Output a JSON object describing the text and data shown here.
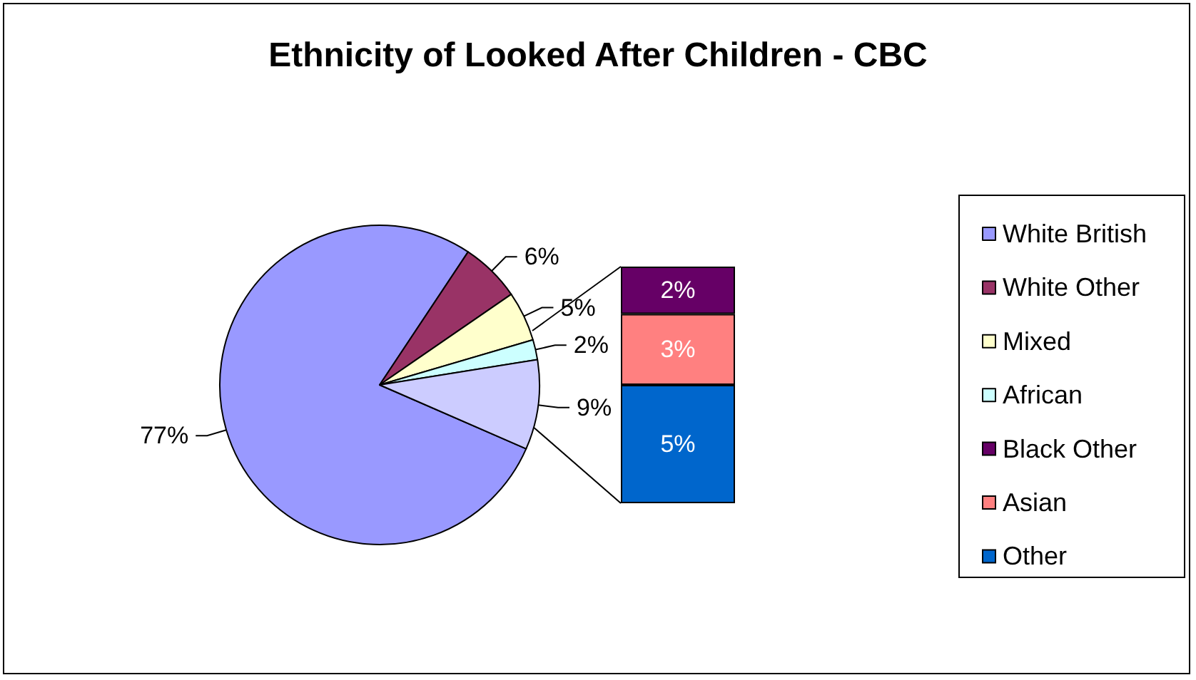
{
  "chart_data": [
    {
      "type": "pie",
      "title": "Ethnicity of Looked After Children - CBC",
      "categories": [
        "White British",
        "White Other",
        "Mixed",
        "African",
        null
      ],
      "values": [
        77,
        6,
        5,
        2,
        9
      ],
      "colors": [
        "#9999ff",
        "#993366",
        "#ffffcc",
        "#ccffff",
        "#ccccff"
      ],
      "value_labels": [
        "77%",
        "6%",
        "5%",
        "2%",
        "9%"
      ],
      "legend": "right"
    },
    {
      "type": "bar",
      "stacked": true,
      "categories": [
        null
      ],
      "legend": "right",
      "series": [
        {
          "name": "Other",
          "color": "#0066cc",
          "values": [
            5
          ],
          "value_labels": [
            "5%"
          ]
        },
        {
          "name": "Asian",
          "color": "#ff8080",
          "values": [
            3
          ],
          "value_labels": [
            "3%"
          ]
        },
        {
          "name": "Black Other",
          "color": "#660066",
          "values": [
            2
          ],
          "value_labels": [
            "2%"
          ]
        }
      ]
    }
  ]
}
